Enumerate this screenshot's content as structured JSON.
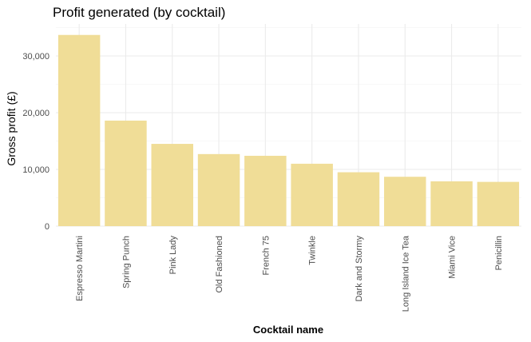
{
  "chart_data": {
    "type": "bar",
    "title": "Profit generated (by cocktail)",
    "xlabel": "Cocktail name",
    "ylabel": "Gross profit (£)",
    "categories": [
      "Espresso Martini",
      "Spring Punch",
      "Pink Lady",
      "Old Fashioned",
      "French 75",
      "Twinkle",
      "Dark and Stormy",
      "Long Island Ice Tea",
      "Miami Vice",
      "Penicillin"
    ],
    "values": [
      33700,
      18600,
      14500,
      12700,
      12400,
      11000,
      9500,
      8700,
      7900,
      7800
    ],
    "ylim": [
      0,
      35000
    ],
    "yticks": [
      0,
      10000,
      20000,
      30000
    ],
    "ytick_labels": [
      "0",
      "10,000",
      "20,000",
      "30,000"
    ],
    "bar_color": "#f0dd97",
    "grid": true,
    "legend": "none"
  }
}
